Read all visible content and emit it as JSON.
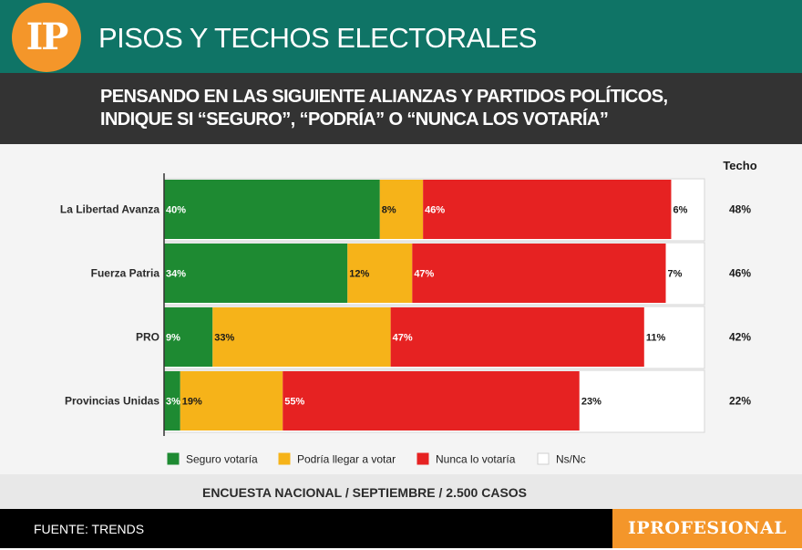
{
  "header": {
    "logo_text": "IP",
    "title": "PISOS Y TECHOS ELECTORALES"
  },
  "subheader": {
    "line1": "PENSANDO EN LAS SIGUIENTE ALIANZAS Y PARTIDOS POLÍTICOS,",
    "line2": "INDIQUE SI “SEGURO”, “PODRÍA” O “NUNCA LOS VOTARÍA”"
  },
  "chart_data": {
    "type": "bar",
    "orientation": "horizontal",
    "stacked": true,
    "categories": [
      "La Libertad Avanza",
      "Fuerza Patria",
      "PRO",
      "Provincias Unidas"
    ],
    "series": [
      {
        "name": "Seguro votaría",
        "color": "#1e8a32",
        "text_color": "#ffffff",
        "values": [
          40,
          34,
          9,
          3
        ]
      },
      {
        "name": "Podría llegar a votar",
        "color": "#f6b319",
        "text_color": "#1a1a1a",
        "values": [
          8,
          12,
          33,
          19
        ]
      },
      {
        "name": "Nunca lo votaría",
        "color": "#e62222",
        "text_color": "#ffffff",
        "values": [
          46,
          47,
          47,
          55
        ]
      },
      {
        "name": "Ns/Nc",
        "color": "#ffffff",
        "text_color": "#1a1a1a",
        "values": [
          6,
          7,
          11,
          23
        ]
      }
    ],
    "extra_column": {
      "title": "Techo",
      "values": [
        "48%",
        "46%",
        "42%",
        "22%"
      ]
    },
    "xlim": [
      0,
      100
    ],
    "legend": "bottom"
  },
  "note": "ENCUESTA NACIONAL / SEPTIEMBRE / 2.500 CASOS",
  "footer": {
    "source": "FUENTE: TRENDS",
    "brand": "IPROFESIONAL"
  }
}
